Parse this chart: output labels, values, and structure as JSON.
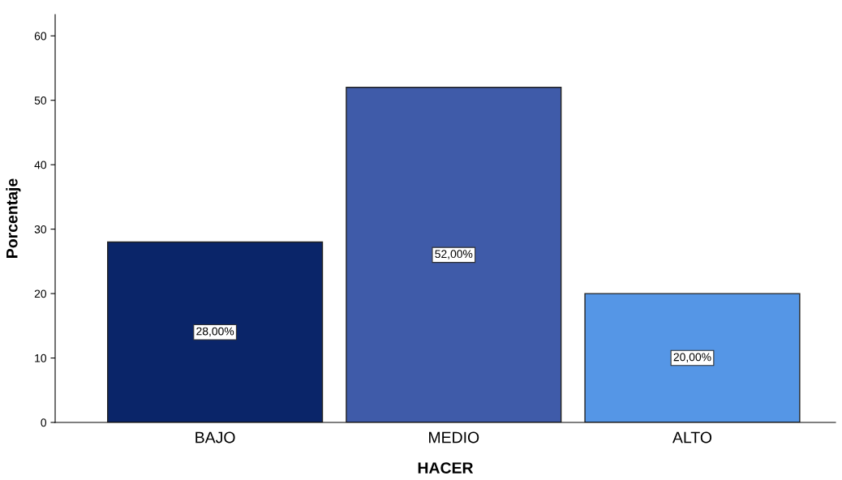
{
  "chart_data": {
    "type": "bar",
    "xlabel": "HACER",
    "ylabel": "Porcentaje",
    "categories": [
      "BAJO",
      "MEDIO",
      "ALTO"
    ],
    "values": [
      28,
      52,
      20
    ],
    "colors": [
      "#0a2569",
      "#3f5ba9",
      "#5596e6"
    ],
    "value_labels": [
      "28,00%",
      "52,00%",
      "20,00%"
    ],
    "ylim": [
      0,
      63.3
    ],
    "yticks": [
      0,
      10,
      20,
      30,
      40,
      50,
      60
    ],
    "grid": false,
    "legend": false
  }
}
